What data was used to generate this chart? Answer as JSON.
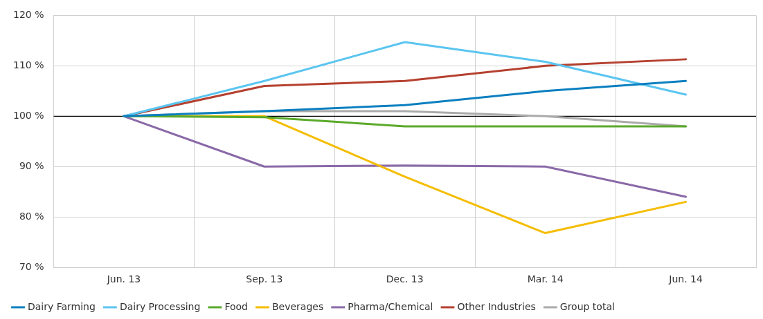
{
  "chart_data": {
    "type": "line",
    "categories": [
      "Jun. 13",
      "Sep. 13",
      "Dec. 13",
      "Mar. 14",
      "Jun. 14"
    ],
    "series": [
      {
        "name": "Dairy Farming",
        "color": "#0a7fc0",
        "values": [
          100,
          101,
          102.2,
          105,
          107
        ]
      },
      {
        "name": "Dairy Processing",
        "color": "#5bc5f0",
        "values": [
          100,
          107,
          114.7,
          110.8,
          104.3
        ]
      },
      {
        "name": "Food",
        "color": "#5aaa2a",
        "values": [
          100,
          99.8,
          98,
          98,
          98
        ]
      },
      {
        "name": "Beverages",
        "color": "#f5bd00",
        "values": [
          100,
          100,
          88,
          76.8,
          83
        ]
      },
      {
        "name": "Pharma/Chemical",
        "color": "#8a69a8",
        "values": [
          100,
          90,
          90.2,
          90,
          84
        ]
      },
      {
        "name": "Other Industries",
        "color": "#b5402f",
        "values": [
          100,
          106,
          107,
          110,
          111.3
        ]
      },
      {
        "name": "Group total",
        "color": "#aaaaaa",
        "values": [
          100,
          101,
          101,
          100,
          98
        ]
      }
    ],
    "ylim": [
      70,
      120
    ],
    "yticks": [
      {
        "value": 70,
        "label": "70 %"
      },
      {
        "value": 80,
        "label": "80 %"
      },
      {
        "value": 90,
        "label": "90 %"
      },
      {
        "value": 100,
        "label": "100 %"
      },
      {
        "value": 110,
        "label": "110 %"
      },
      {
        "value": 120,
        "label": "120 %"
      }
    ],
    "ref_lines": [
      {
        "axis": "y",
        "value": 100,
        "color": "#000000"
      }
    ],
    "grid": true,
    "legend": "bottom left",
    "marker": "none",
    "line_style": "solid"
  }
}
